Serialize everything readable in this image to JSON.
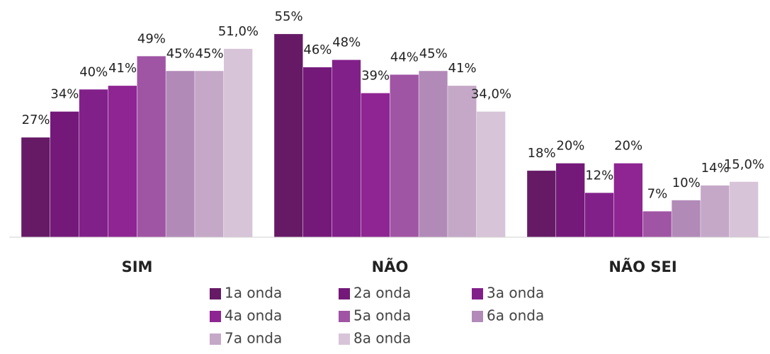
{
  "chart_data": {
    "type": "bar",
    "categories": [
      "SIM",
      "NÃO",
      "NÃO SEI"
    ],
    "ylim": [
      0,
      60
    ],
    "series": [
      {
        "name": "1a onda",
        "color": "#661a66",
        "values": [
          27,
          55,
          18
        ],
        "value_labels": [
          "27%",
          "55%",
          "18%"
        ]
      },
      {
        "name": "2a onda",
        "color": "#74197a",
        "values": [
          34,
          46,
          20
        ],
        "value_labels": [
          "34%",
          "46%",
          "20%"
        ]
      },
      {
        "name": "3a onda",
        "color": "#82208a",
        "values": [
          40,
          48,
          12
        ],
        "value_labels": [
          "40%",
          "48%",
          "12%"
        ]
      },
      {
        "name": "4a onda",
        "color": "#8e2592",
        "values": [
          41,
          39,
          20
        ],
        "value_labels": [
          "41%",
          "39%",
          "20%"
        ]
      },
      {
        "name": "5a onda",
        "color": "#a054a4",
        "values": [
          49,
          44,
          7
        ],
        "value_labels": [
          "49%",
          "44%",
          "7%"
        ]
      },
      {
        "name": "6a onda",
        "color": "#b28ab8",
        "values": [
          45,
          45,
          10
        ],
        "value_labels": [
          "45%",
          "45%",
          "10%"
        ]
      },
      {
        "name": "7a onda",
        "color": "#c5a8c8",
        "values": [
          45,
          41,
          14
        ],
        "value_labels": [
          "45%",
          "41%",
          "14%"
        ]
      },
      {
        "name": "8a onda",
        "color": "#d8c4d8",
        "values": [
          51,
          34,
          15
        ],
        "value_labels": [
          "51,0%",
          "34,0%",
          "15,0%"
        ]
      }
    ]
  }
}
